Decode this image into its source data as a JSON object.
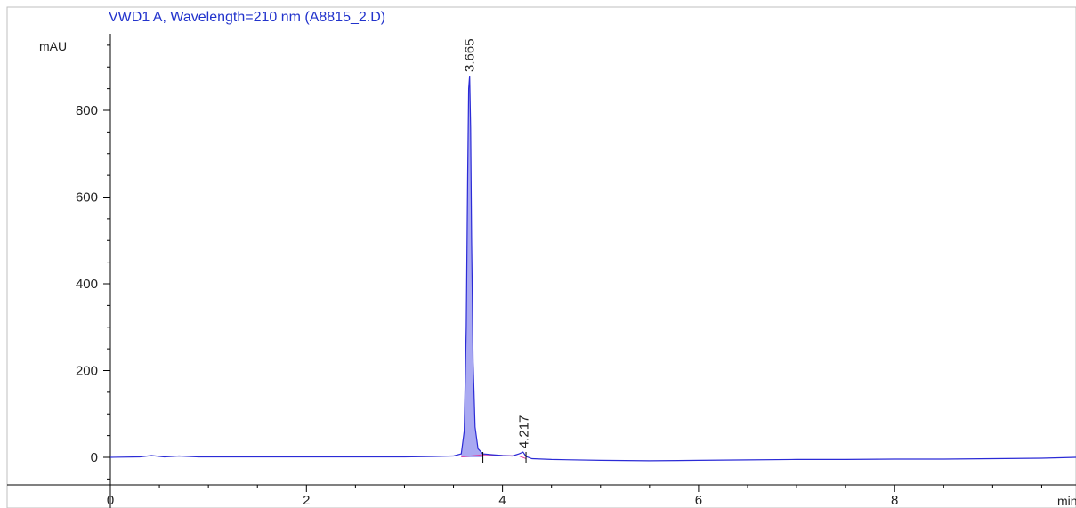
{
  "chart_data": {
    "type": "line",
    "title": "VWD1 A, Wavelength=210 nm (A8815_2.D)",
    "ylabel": "mAU",
    "xlabel": "min",
    "xlim": [
      0,
      9.85
    ],
    "ylim": [
      -50,
      1000
    ],
    "xticks": [
      0,
      2,
      4,
      6,
      8
    ],
    "yticks": [
      0,
      200,
      400,
      600,
      800
    ],
    "x_minor_step": 0.5,
    "y_minor_step": 50,
    "peaks": [
      {
        "label": "3.665",
        "x": 3.665,
        "y": 880
      },
      {
        "label": "4.217",
        "x": 4.217,
        "y": 12
      }
    ],
    "series": [
      {
        "x": [
          0,
          0.3,
          0.42,
          0.55,
          0.7,
          0.9,
          1.5,
          2.0,
          2.5,
          3.0,
          3.3,
          3.5,
          3.58,
          3.61,
          3.63,
          3.645,
          3.655,
          3.665,
          3.675,
          3.685,
          3.7,
          3.72,
          3.75,
          3.8,
          3.9,
          4.0,
          4.1,
          4.17,
          4.21,
          4.24,
          4.3,
          4.5,
          5.0,
          5.5,
          6.0,
          6.5,
          7.0,
          7.5,
          8.0,
          8.5,
          9.0,
          9.5,
          9.85
        ],
        "y": [
          0,
          1,
          4,
          1,
          3,
          1,
          1,
          1,
          1,
          1,
          2,
          3,
          8,
          60,
          300,
          650,
          850,
          880,
          760,
          500,
          220,
          70,
          20,
          8,
          6,
          4,
          3,
          8,
          12,
          2,
          -3,
          -5,
          -7,
          -8,
          -7,
          -6,
          -5,
          -5,
          -4,
          -4,
          -3,
          -2,
          0
        ]
      }
    ],
    "baseline": {
      "x": [
        3.58,
        3.8,
        4.17,
        4.24
      ],
      "y": [
        1,
        6,
        3,
        -3
      ]
    },
    "colors": {
      "trace": "#2b2bd6",
      "trace_fill": "#a9a9f2",
      "baseline": "#e03c9c",
      "axis": "#000000",
      "title": "#2233cc"
    }
  }
}
